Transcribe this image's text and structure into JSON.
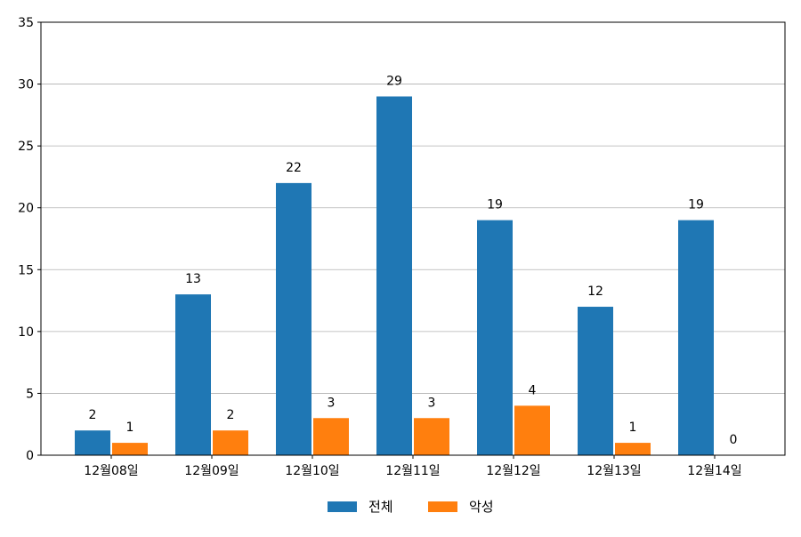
{
  "chart_data": {
    "type": "bar",
    "categories": [
      "12월08일",
      "12월09일",
      "12월10일",
      "12월11일",
      "12월12일",
      "12월13일",
      "12월14일"
    ],
    "series": [
      {
        "name": "전체",
        "values": [
          2,
          13,
          22,
          29,
          19,
          12,
          19
        ],
        "color": "#1f77b4"
      },
      {
        "name": "악성",
        "values": [
          1,
          2,
          3,
          3,
          4,
          1,
          0
        ],
        "color": "#ff7f0e"
      }
    ],
    "ylim": [
      0,
      35
    ],
    "yticks": [
      0,
      5,
      10,
      15,
      20,
      25,
      30,
      35
    ],
    "grid": "horizontal",
    "legend_position": "bottom-center",
    "data_labels": true
  }
}
